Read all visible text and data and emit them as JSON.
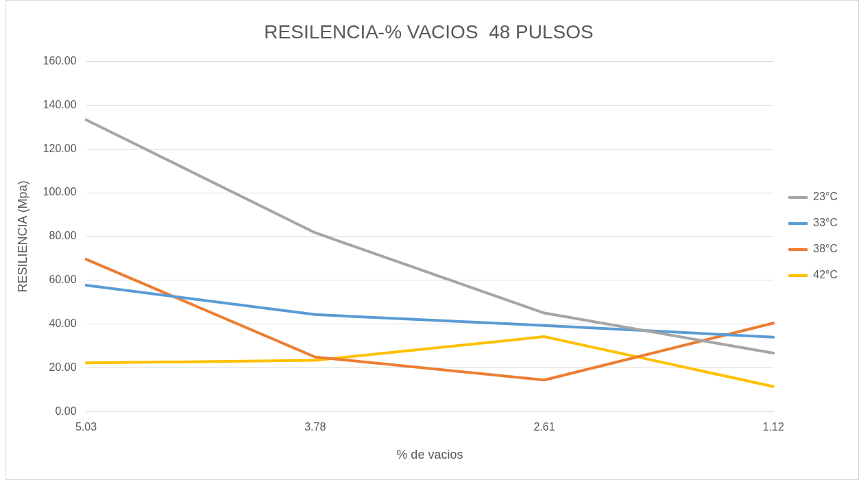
{
  "chart_data": {
    "type": "line",
    "title": "RESILENCIA-% VACIOS  48 PULSOS",
    "xlabel": "% de vacios",
    "ylabel": "RESILIENCIA (Mpa)",
    "categories": [
      "5.03",
      "3.78",
      "2.61",
      "1.12"
    ],
    "series": [
      {
        "name": "23°C",
        "color": "#a5a5a5",
        "values": [
          133.3,
          81.7,
          45.0,
          26.7
        ]
      },
      {
        "name": "33°C",
        "color": "#5b9bd5",
        "values": [
          57.7,
          44.3,
          39.3,
          34.0
        ]
      },
      {
        "name": "38°C",
        "color": "#ed7d31",
        "values": [
          69.6,
          24.9,
          14.4,
          40.4
        ]
      },
      {
        "name": "42°C",
        "color": "#ffc000",
        "values": [
          22.2,
          23.4,
          34.2,
          11.4
        ]
      }
    ],
    "ylim": [
      0,
      160
    ],
    "yticks": [
      {
        "value": 0,
        "label": "0.00"
      },
      {
        "value": 20,
        "label": "20.00"
      },
      {
        "value": 40,
        "label": "40.00"
      },
      {
        "value": 60,
        "label": "60.00"
      },
      {
        "value": 80,
        "label": "80.00"
      },
      {
        "value": 100,
        "label": "100.00"
      },
      {
        "value": 120,
        "label": "120.00"
      },
      {
        "value": 140,
        "label": "140.00"
      },
      {
        "value": 160,
        "label": "160.00"
      }
    ],
    "grid": "y",
    "legend": "right",
    "marker": "none",
    "line_style": "solid"
  }
}
